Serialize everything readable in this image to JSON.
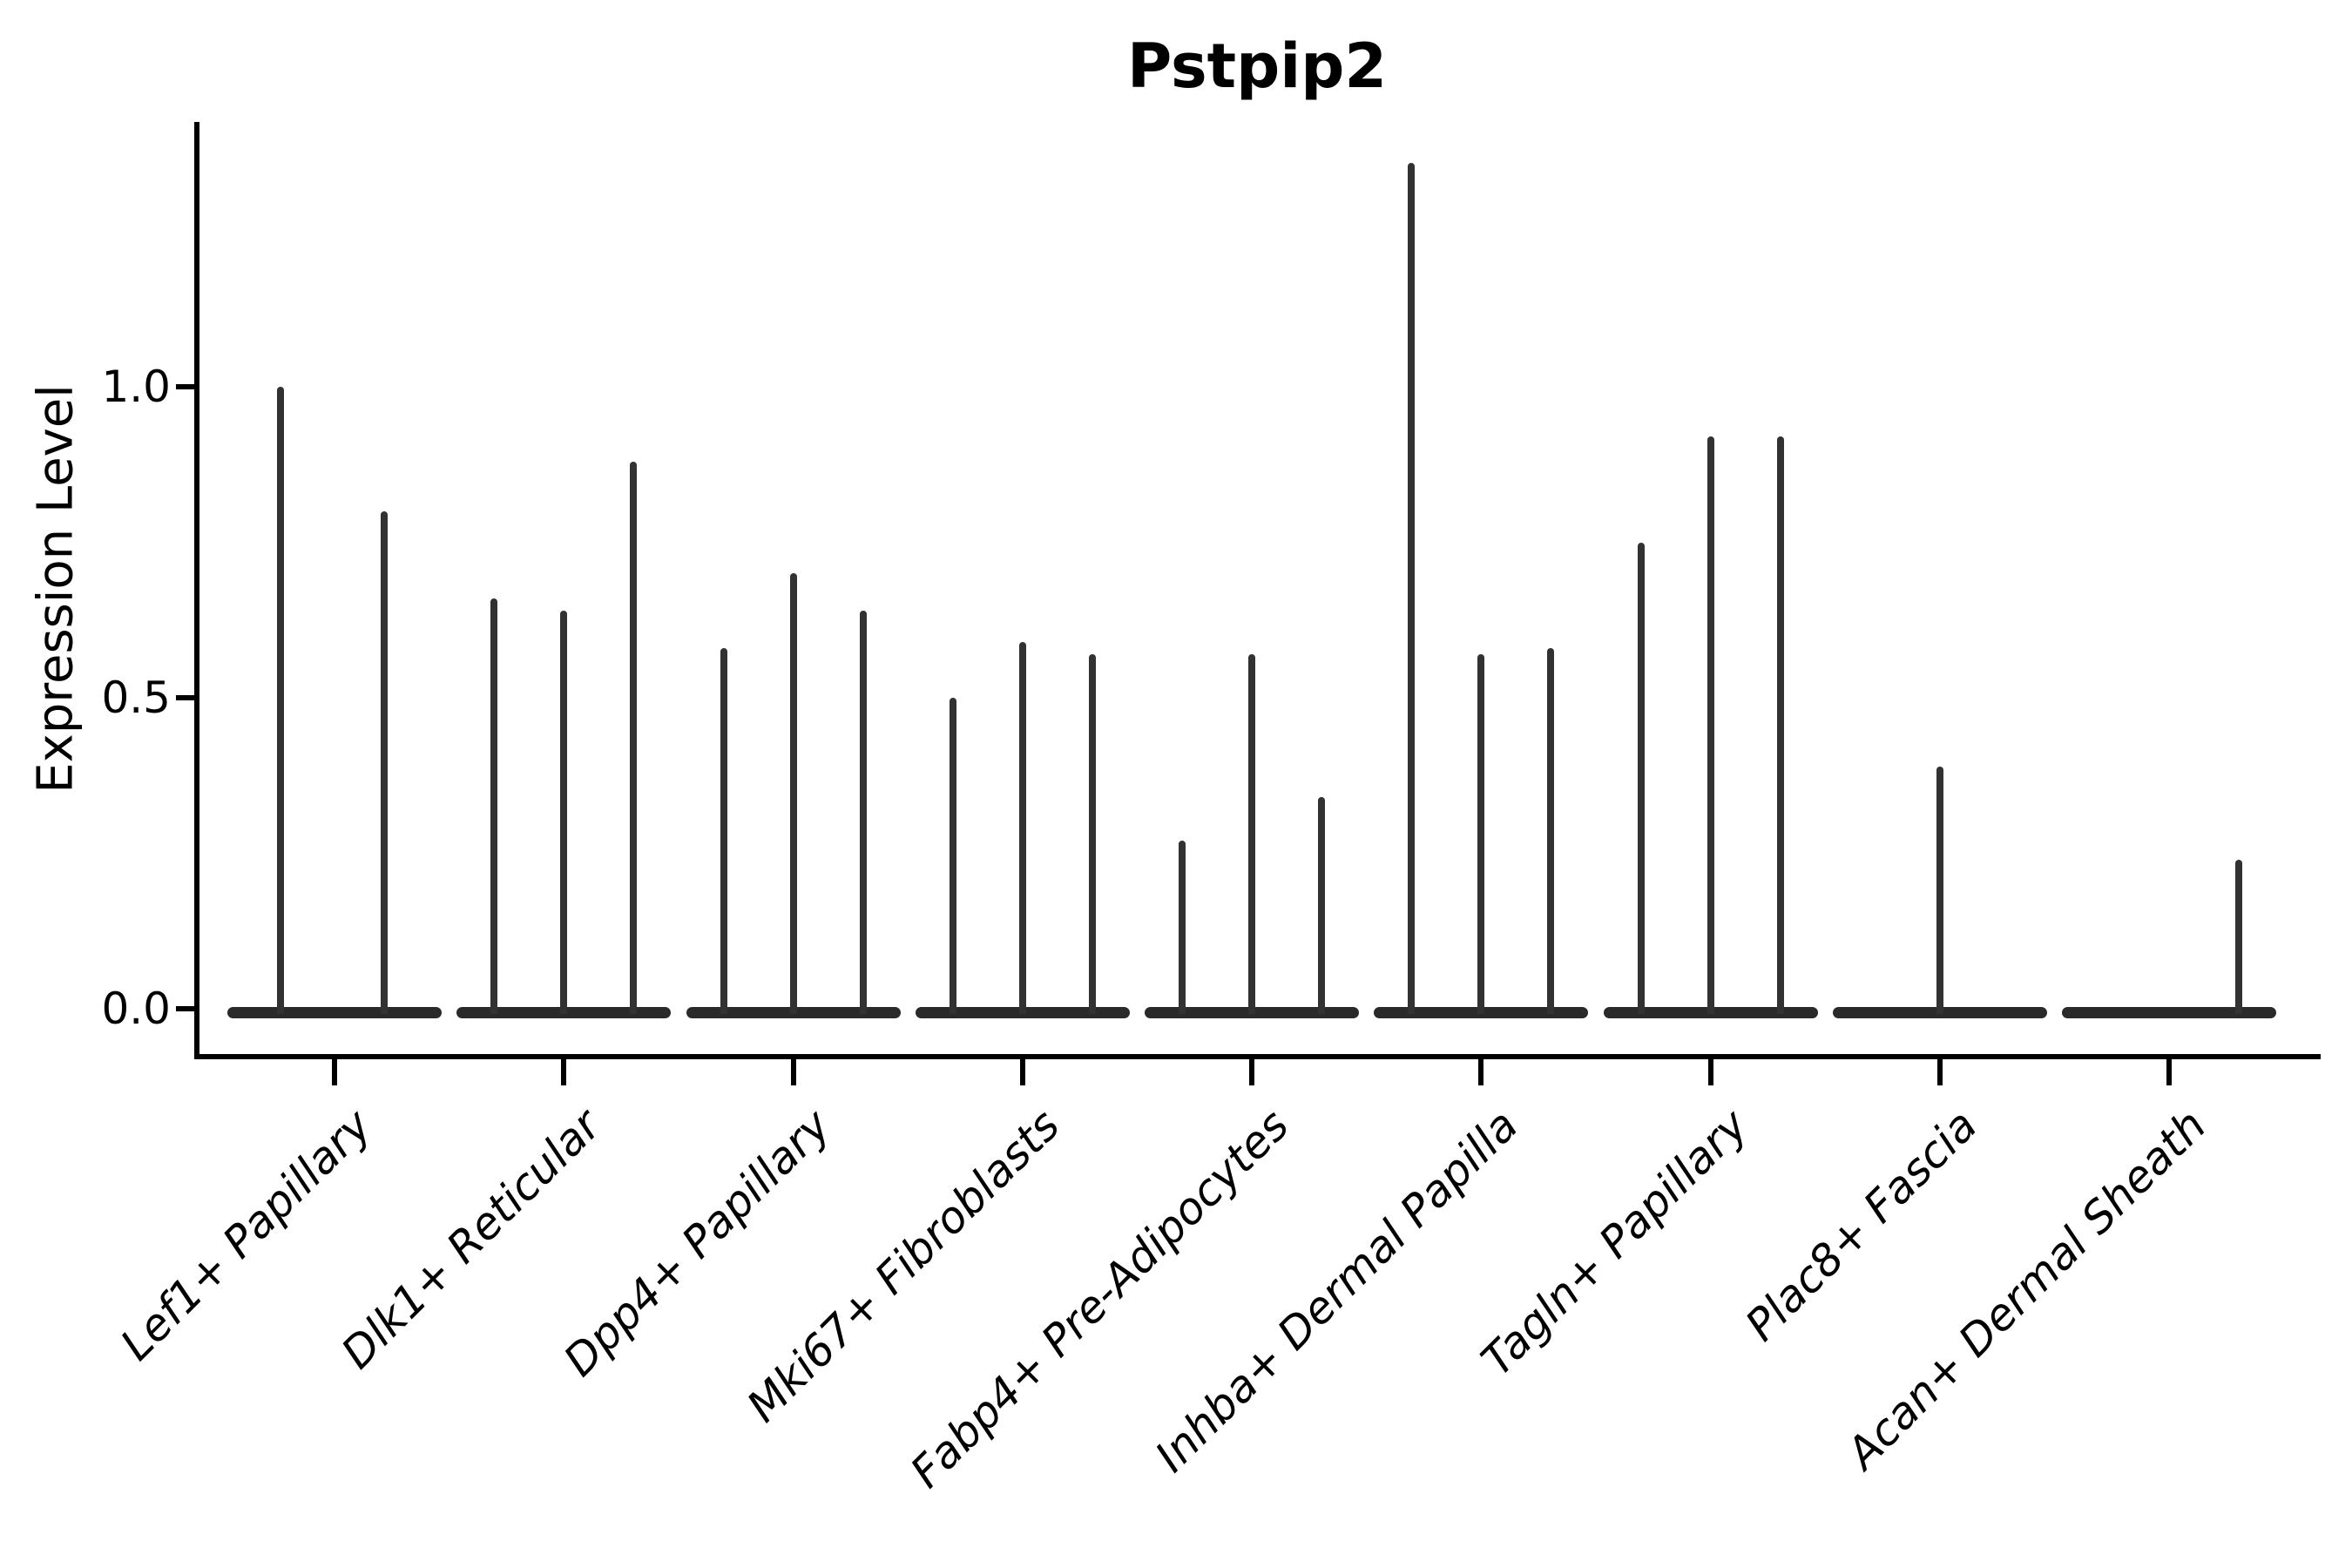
{
  "title": "Pstpip2",
  "axes": {
    "ylabel": "Expression Level",
    "xlabel": "",
    "ytick_labels": [
      "0.0",
      "0.5",
      "1.0"
    ]
  },
  "chart_data": {
    "type": "violin",
    "title": "Pstpip2",
    "xlabel": "",
    "ylabel": "Expression Level",
    "ylim": [
      0,
      1.43
    ],
    "yticks": [
      0.0,
      0.5,
      1.0
    ],
    "grid": false,
    "legend": false,
    "note": "Each category shows a flattened violin (density mass at 0) with narrow vertical density spikes; spike 'max' is the expression value at the spike tip, 'dx' is the sub-violin horizontal slot offset from the category center in source-image pixels.",
    "categories": [
      "Lef1+ Papillary",
      "Dlk1+ Reticular",
      "Dpp4+ Papillary",
      "Mki67+ Fibroblasts",
      "Fabp4+ Pre-Adipocytes",
      "Inhba+ Dermal Papilla",
      "Tagln+ Papillary",
      "Plac8+ Fascia",
      "Acan+ Dermal Sheath"
    ],
    "violins": [
      {
        "category": "Lef1+ Papillary",
        "spikes": [
          {
            "dx": -62,
            "max": 1.0
          },
          {
            "dx": 57,
            "max": 0.8
          }
        ]
      },
      {
        "category": "Dlk1+ Reticular",
        "spikes": [
          {
            "dx": -80,
            "max": 0.66
          },
          {
            "dx": 0,
            "max": 0.64
          },
          {
            "dx": 80,
            "max": 0.88
          }
        ]
      },
      {
        "category": "Dpp4+ Papillary",
        "spikes": [
          {
            "dx": -80,
            "max": 0.58
          },
          {
            "dx": 0,
            "max": 0.7
          },
          {
            "dx": 80,
            "max": 0.64
          }
        ]
      },
      {
        "category": "Mki67+ Fibroblasts",
        "spikes": [
          {
            "dx": -80,
            "max": 0.5
          },
          {
            "dx": 0,
            "max": 0.59
          },
          {
            "dx": 80,
            "max": 0.57
          }
        ]
      },
      {
        "category": "Fabp4+ Pre-Adipocytes",
        "spikes": [
          {
            "dx": -80,
            "max": 0.27
          },
          {
            "dx": 0,
            "max": 0.57
          },
          {
            "dx": 80,
            "max": 0.34
          }
        ]
      },
      {
        "category": "Inhba+ Dermal Papilla",
        "spikes": [
          {
            "dx": -80,
            "max": 1.36
          },
          {
            "dx": 0,
            "max": 0.57
          },
          {
            "dx": 80,
            "max": 0.58
          }
        ]
      },
      {
        "category": "Tagln+ Papillary",
        "spikes": [
          {
            "dx": -80,
            "max": 0.75
          },
          {
            "dx": 0,
            "max": 0.92
          },
          {
            "dx": 80,
            "max": 0.92
          }
        ]
      },
      {
        "category": "Plac8+ Fascia",
        "spikes": [
          {
            "dx": 0,
            "max": 0.39
          }
        ]
      },
      {
        "category": "Acan+ Dermal Sheath",
        "spikes": [
          {
            "dx": 80,
            "max": 0.24
          }
        ]
      }
    ]
  },
  "colors": {
    "violin_base": "#2a2a2a",
    "violin_spike": "#323232",
    "axis": "#000000",
    "text": "#000000",
    "background": "#ffffff"
  }
}
